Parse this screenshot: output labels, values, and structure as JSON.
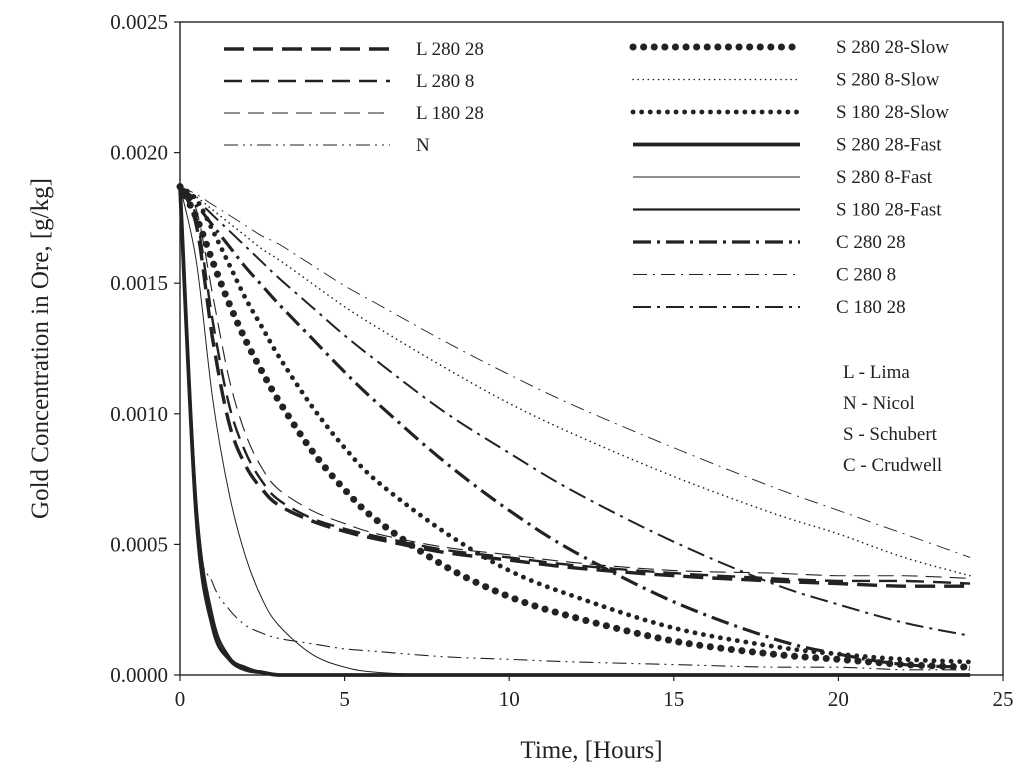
{
  "chart_data": {
    "type": "line",
    "xlabel": "Time, [Hours]",
    "ylabel": "Gold Concentration in Ore, [g/kg]",
    "xlim": [
      0,
      25
    ],
    "ylim": [
      0,
      0.0025
    ],
    "xticks": [
      "0",
      "5",
      "10",
      "15",
      "20",
      "25"
    ],
    "yticks": [
      "0.0000",
      "0.0005",
      "0.0010",
      "0.0015",
      "0.0020",
      "0.0025"
    ],
    "grid": false,
    "legend_position": "top",
    "x": [
      0,
      0.5,
      1,
      1.5,
      2,
      2.5,
      3,
      4,
      5,
      6,
      8,
      10,
      12,
      15,
      18,
      20,
      22,
      24
    ],
    "series": [
      {
        "name": "L 280 28",
        "style": "dash-heavy",
        "values": [
          0.00187,
          0.00172,
          0.00128,
          0.00096,
          0.0008,
          0.00071,
          0.00065,
          0.00059,
          0.00055,
          0.00052,
          0.00047,
          0.00044,
          0.00041,
          0.00038,
          0.00036,
          0.00035,
          0.00034,
          0.00034
        ]
      },
      {
        "name": "L 280 8",
        "style": "dash-medium",
        "values": [
          0.00187,
          0.00175,
          0.00135,
          0.00103,
          0.00085,
          0.00074,
          0.00067,
          0.0006,
          0.00056,
          0.00053,
          0.00048,
          0.00045,
          0.00042,
          0.00039,
          0.00037,
          0.00036,
          0.00036,
          0.00035
        ]
      },
      {
        "name": "L 180 28",
        "style": "dash-thin",
        "values": [
          0.00187,
          0.00178,
          0.00145,
          0.00113,
          0.00092,
          0.00079,
          0.00071,
          0.00063,
          0.00058,
          0.00054,
          0.00049,
          0.00046,
          0.00043,
          0.0004,
          0.00039,
          0.00038,
          0.00038,
          0.00037
        ]
      },
      {
        "name": "N",
        "style": "dash-dot-dot",
        "values": [
          0.00187,
          0.0006,
          0.00035,
          0.00025,
          0.00019,
          0.00016,
          0.00014,
          0.00012,
          0.0001,
          9e-05,
          7e-05,
          6e-05,
          5e-05,
          4e-05,
          3e-05,
          3e-05,
          2e-05,
          2e-05
        ]
      },
      {
        "name": "S 280 28-Slow",
        "style": "dots-heavy",
        "values": [
          0.00187,
          0.00175,
          0.00158,
          0.00142,
          0.00128,
          0.00116,
          0.00105,
          0.00086,
          0.00071,
          0.00059,
          0.00042,
          0.0003,
          0.00022,
          0.00013,
          8e-05,
          6e-05,
          4e-05,
          3e-05
        ]
      },
      {
        "name": "S 280 8-Slow",
        "style": "dots-thin",
        "values": [
          0.00187,
          0.00183,
          0.00178,
          0.00173,
          0.00168,
          0.00163,
          0.00159,
          0.0015,
          0.00141,
          0.00133,
          0.00118,
          0.00104,
          0.00092,
          0.00076,
          0.00062,
          0.00054,
          0.00045,
          0.00038
        ]
      },
      {
        "name": "S 180 28-Slow",
        "style": "dots-medium",
        "values": [
          0.00187,
          0.00182,
          0.0017,
          0.00157,
          0.00144,
          0.00133,
          0.00122,
          0.00103,
          0.00087,
          0.00074,
          0.00055,
          0.0004,
          0.0003,
          0.00018,
          0.00011,
          8e-05,
          6e-05,
          5e-05
        ]
      },
      {
        "name": "S 280 28-Fast",
        "style": "solid-heavy",
        "values": [
          0.00187,
          0.0006,
          0.00018,
          6e-05,
          2e-05,
          1e-05,
          0,
          0,
          0,
          0,
          0,
          0,
          0,
          0,
          0,
          0,
          0,
          0
        ]
      },
      {
        "name": "S 280 8-Fast",
        "style": "solid-thin",
        "values": [
          0.00187,
          0.00158,
          0.00105,
          0.00069,
          0.00045,
          0.00029,
          0.00019,
          8e-05,
          3e-05,
          1e-05,
          0,
          0,
          0,
          0,
          0,
          0,
          0,
          0
        ]
      },
      {
        "name": "S 180 28-Fast",
        "style": "solid-medium",
        "values": [
          0.00187,
          0.00066,
          0.00022,
          7e-05,
          3e-05,
          1e-05,
          0,
          0,
          0,
          0,
          0,
          0,
          0,
          0,
          0,
          0,
          0,
          0
        ]
      },
      {
        "name": "C 280 28",
        "style": "dash-dot-heavy",
        "values": [
          0.00187,
          0.0018,
          0.00172,
          0.00164,
          0.00156,
          0.00149,
          0.00142,
          0.00129,
          0.00116,
          0.00104,
          0.00082,
          0.00063,
          0.00047,
          0.00028,
          0.00014,
          8e-05,
          4e-05,
          3e-05
        ]
      },
      {
        "name": "C 280 8",
        "style": "dash-dot-thin",
        "values": [
          0.00187,
          0.00184,
          0.0018,
          0.00176,
          0.00172,
          0.00168,
          0.00165,
          0.00157,
          0.00149,
          0.00142,
          0.00128,
          0.00115,
          0.00103,
          0.00087,
          0.00072,
          0.00063,
          0.00054,
          0.00045
        ]
      },
      {
        "name": "C 180 28",
        "style": "dash-dot-medium",
        "values": [
          0.00187,
          0.00182,
          0.00176,
          0.0017,
          0.00164,
          0.00158,
          0.00152,
          0.00141,
          0.0013,
          0.0012,
          0.00101,
          0.00085,
          0.0007,
          0.00051,
          0.00035,
          0.00027,
          0.0002,
          0.00015
        ]
      }
    ],
    "notes": [
      "L - Lima",
      "N - Nicol",
      "S - Schubert",
      "C - Crudwell"
    ]
  }
}
